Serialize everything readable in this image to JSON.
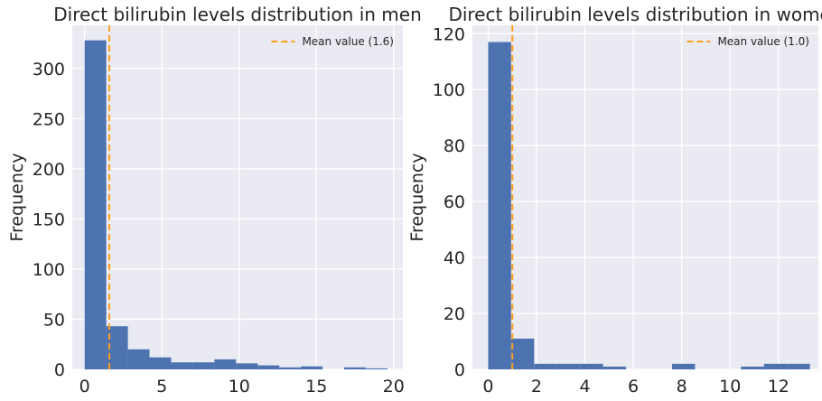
{
  "chart_data": [
    {
      "type": "histogram",
      "title": "Direct bilirubin levels distribution in men",
      "xlabel": "",
      "ylabel": "Frequency",
      "xlim": [
        -0.8,
        20.6
      ],
      "ylim": [
        0,
        343
      ],
      "xticks": [
        0,
        5,
        10,
        15,
        20
      ],
      "yticks": [
        0,
        50,
        100,
        150,
        200,
        250,
        300
      ],
      "grid": true,
      "bins": [
        {
          "x0": 0.0,
          "x1": 1.4,
          "count": 328
        },
        {
          "x0": 1.4,
          "x1": 2.8,
          "count": 43
        },
        {
          "x0": 2.8,
          "x1": 4.2,
          "count": 20
        },
        {
          "x0": 4.2,
          "x1": 5.6,
          "count": 12
        },
        {
          "x0": 5.6,
          "x1": 7.0,
          "count": 7
        },
        {
          "x0": 7.0,
          "x1": 8.4,
          "count": 7
        },
        {
          "x0": 8.4,
          "x1": 9.8,
          "count": 10
        },
        {
          "x0": 9.8,
          "x1": 11.2,
          "count": 6
        },
        {
          "x0": 11.2,
          "x1": 12.6,
          "count": 4
        },
        {
          "x0": 12.6,
          "x1": 14.0,
          "count": 2
        },
        {
          "x0": 14.0,
          "x1": 15.4,
          "count": 3
        },
        {
          "x0": 15.4,
          "x1": 16.8,
          "count": 0
        },
        {
          "x0": 16.8,
          "x1": 18.2,
          "count": 2
        },
        {
          "x0": 18.2,
          "x1": 19.6,
          "count": 1
        }
      ],
      "mean": 1.6,
      "legend": {
        "label": "Mean value (1.6)",
        "placement": "top-right"
      },
      "bar_color": "#4c72b0",
      "mean_color": "#ff9f1c"
    },
    {
      "type": "histogram",
      "title": "Direct bilirubin levels distribution in women",
      "xlabel": "",
      "ylabel": "Frequency",
      "xlim": [
        -0.65,
        13.65
      ],
      "ylim": [
        0,
        123
      ],
      "xticks": [
        0,
        2,
        4,
        6,
        8,
        10,
        12
      ],
      "yticks": [
        0,
        20,
        40,
        60,
        80,
        100,
        120
      ],
      "grid": true,
      "bins": [
        {
          "x0": 0.0,
          "x1": 0.95,
          "count": 117
        },
        {
          "x0": 0.95,
          "x1": 1.9,
          "count": 11
        },
        {
          "x0": 1.9,
          "x1": 2.85,
          "count": 2
        },
        {
          "x0": 2.85,
          "x1": 3.8,
          "count": 2
        },
        {
          "x0": 3.8,
          "x1": 4.75,
          "count": 2
        },
        {
          "x0": 4.75,
          "x1": 5.7,
          "count": 1
        },
        {
          "x0": 5.7,
          "x1": 6.65,
          "count": 0
        },
        {
          "x0": 6.65,
          "x1": 7.6,
          "count": 0
        },
        {
          "x0": 7.6,
          "x1": 8.55,
          "count": 2
        },
        {
          "x0": 8.55,
          "x1": 9.5,
          "count": 0
        },
        {
          "x0": 9.5,
          "x1": 10.45,
          "count": 0
        },
        {
          "x0": 10.45,
          "x1": 11.4,
          "count": 1
        },
        {
          "x0": 11.4,
          "x1": 12.35,
          "count": 2
        },
        {
          "x0": 12.35,
          "x1": 13.3,
          "count": 2
        }
      ],
      "mean": 1.0,
      "legend": {
        "label": "Mean value (1.0)",
        "placement": "top-right"
      },
      "bar_color": "#4c72b0",
      "mean_color": "#ff9f1c"
    }
  ]
}
